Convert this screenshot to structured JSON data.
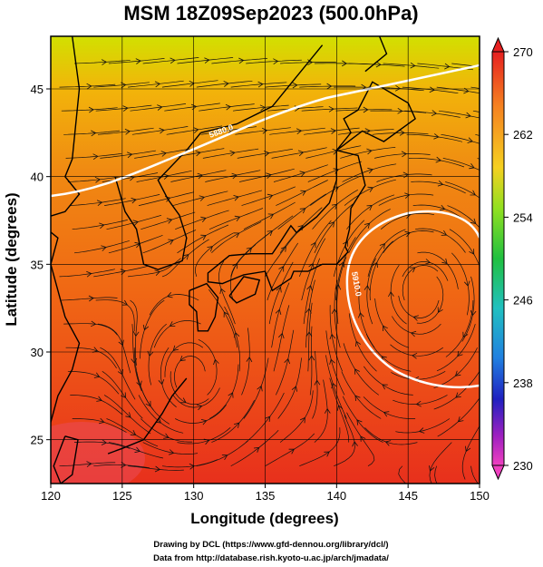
{
  "title": "MSM 18Z09Sep2023 (500.0hPa)",
  "map": {
    "xlabel": "Longitude (degrees)",
    "ylabel": "Latitude  (degrees)",
    "xlim": [
      120,
      150
    ],
    "ylim": [
      22.5,
      48
    ],
    "xticks": [
      "120",
      "125",
      "130",
      "135",
      "140",
      "145",
      "150"
    ],
    "yticks": [
      "25",
      "30",
      "35",
      "40",
      "45"
    ],
    "contours": [
      {
        "label": "5880.0"
      },
      {
        "label": "5910.0"
      }
    ],
    "field": "temperature",
    "field_colors": {
      "cold_north": "#c8e000",
      "mid": "#f07a10",
      "warm_south": "#e8361c"
    }
  },
  "colorbar": {
    "ticks": [
      "270",
      "262",
      "254",
      "246",
      "238",
      "230"
    ],
    "colors": [
      "#e62020",
      "#f58020",
      "#f5d020",
      "#90e020",
      "#20c040",
      "#20c0c0",
      "#2080e0",
      "#2020c0",
      "#c020c0",
      "#f040c0"
    ]
  },
  "credits": {
    "line1": "Drawing by DCL (https://www.gfd-dennou.org/library/dcl/)",
    "line2": "Data from http://database.rish.kyoto-u.ac.jp/arch/jmadata/"
  }
}
